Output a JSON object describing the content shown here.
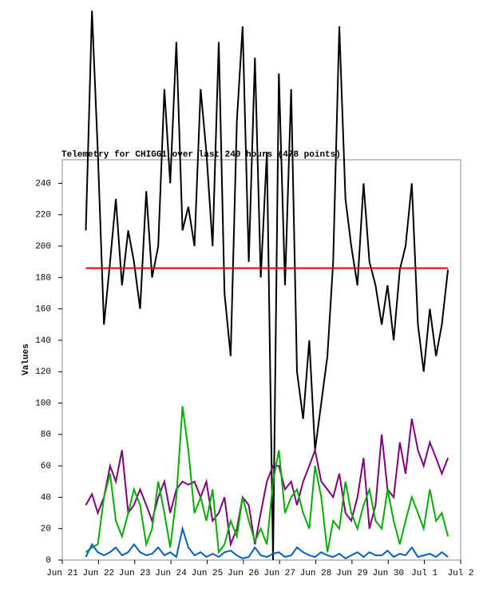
{
  "chart_data": {
    "type": "line",
    "title": "Telemetry for CHIGG1 over last 240 hours (478 points)",
    "y_label": "Values",
    "xlim": [
      0,
      11
    ],
    "ylim": [
      0,
      255
    ],
    "xticks": [
      {
        "value": 0,
        "label": "Jun 21"
      },
      {
        "value": 1,
        "label": "Jun 22"
      },
      {
        "value": 2,
        "label": "Jun 23"
      },
      {
        "value": 3,
        "label": "Jun 24"
      },
      {
        "value": 4,
        "label": "Jun 25"
      },
      {
        "value": 5,
        "label": "Jun 26"
      },
      {
        "value": 6,
        "label": "Jun 27"
      },
      {
        "value": 7,
        "label": "Jun 28"
      },
      {
        "value": 8,
        "label": "Jun 29"
      },
      {
        "value": 9,
        "label": "Jun 30"
      },
      {
        "value": 10,
        "label": "Jul 1"
      },
      {
        "value": 11,
        "label": "Jul 2"
      }
    ],
    "yticks": [
      0,
      20,
      40,
      60,
      80,
      100,
      120,
      140,
      160,
      180,
      200,
      220,
      240
    ],
    "x": [
      0.65,
      0.82,
      0.98,
      1.15,
      1.32,
      1.48,
      1.65,
      1.82,
      1.98,
      2.15,
      2.32,
      2.48,
      2.65,
      2.82,
      2.98,
      3.15,
      3.32,
      3.48,
      3.65,
      3.82,
      3.98,
      4.15,
      4.32,
      4.48,
      4.65,
      4.82,
      4.98,
      5.15,
      5.32,
      5.48,
      5.65,
      5.82,
      5.98,
      6.15,
      6.32,
      6.48,
      6.65,
      6.82,
      6.98,
      7.15,
      7.32,
      7.48,
      7.65,
      7.82,
      7.98,
      8.15,
      8.32,
      8.48,
      8.65,
      8.82,
      8.98,
      9.15,
      9.32,
      9.48,
      9.65,
      9.82,
      9.98,
      10.15,
      10.32,
      10.48,
      10.65
    ],
    "series": [
      {
        "color": "#000000",
        "values": [
          210,
          350,
          260,
          150,
          190,
          230,
          175,
          210,
          190,
          160,
          235,
          180,
          200,
          300,
          240,
          330,
          210,
          225,
          200,
          300,
          260,
          200,
          330,
          170,
          130,
          280,
          340,
          190,
          320,
          180,
          260,
          0,
          310,
          175,
          300,
          120,
          90,
          140,
          70,
          100,
          130,
          190,
          340,
          230,
          200,
          175,
          240,
          190,
          175,
          150,
          175,
          140,
          185,
          200,
          240,
          150,
          120,
          160,
          130,
          150,
          185
        ]
      },
      {
        "color": "#800080",
        "values": [
          35,
          42,
          30,
          40,
          60,
          50,
          70,
          30,
          35,
          45,
          35,
          25,
          40,
          50,
          30,
          45,
          50,
          48,
          50,
          40,
          50,
          25,
          30,
          40,
          10,
          20,
          40,
          35,
          10,
          30,
          50,
          60,
          60,
          45,
          50,
          35,
          50,
          60,
          70,
          50,
          45,
          40,
          55,
          30,
          25,
          40,
          65,
          20,
          35,
          80,
          45,
          40,
          75,
          55,
          90,
          70,
          60,
          75,
          65,
          55,
          65
        ]
      },
      {
        "color": "#00b000",
        "values": [
          5,
          8,
          10,
          40,
          55,
          25,
          15,
          30,
          45,
          35,
          10,
          20,
          50,
          30,
          8,
          40,
          98,
          70,
          30,
          40,
          25,
          45,
          5,
          10,
          25,
          15,
          40,
          25,
          12,
          20,
          10,
          50,
          70,
          30,
          40,
          45,
          30,
          20,
          60,
          40,
          5,
          25,
          20,
          50,
          30,
          20,
          35,
          45,
          25,
          20,
          45,
          25,
          10,
          25,
          40,
          30,
          20,
          45,
          25,
          30,
          15
        ]
      },
      {
        "color": "#0060c0",
        "values": [
          2,
          10,
          5,
          3,
          5,
          8,
          3,
          5,
          10,
          5,
          3,
          4,
          8,
          3,
          5,
          2,
          20,
          8,
          3,
          5,
          2,
          4,
          2,
          5,
          6,
          3,
          1,
          2,
          8,
          3,
          2,
          4,
          5,
          2,
          3,
          8,
          5,
          3,
          2,
          5,
          3,
          2,
          4,
          1,
          3,
          5,
          2,
          5,
          3,
          3,
          6,
          2,
          4,
          3,
          8,
          2,
          3,
          4,
          2,
          5,
          2
        ]
      }
    ],
    "reference_line": {
      "color": "#e00000",
      "value": 186,
      "x": [
        0.65,
        10.65
      ]
    }
  }
}
